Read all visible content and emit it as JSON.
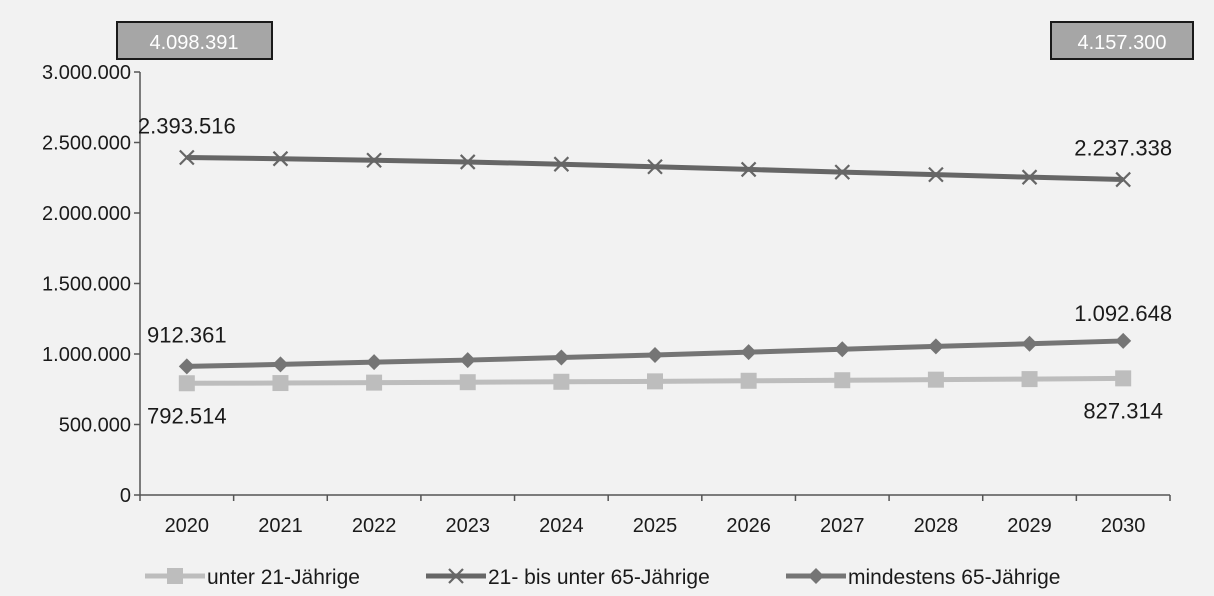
{
  "chart_data": {
    "type": "line",
    "title": "",
    "xlabel": "",
    "ylabel": "",
    "x": [
      2020,
      2021,
      2022,
      2023,
      2024,
      2025,
      2026,
      2027,
      2028,
      2029,
      2030
    ],
    "ylim": [
      0,
      3000000
    ],
    "yticks": [
      0,
      500000,
      1000000,
      1500000,
      2000000,
      2500000,
      3000000
    ],
    "ytick_labels": [
      "0",
      "500.000",
      "1.000.000",
      "1.500.000",
      "2.000.000",
      "2.500.000",
      "3.000.000"
    ],
    "grid": false,
    "legend_position": "bottom",
    "totals": {
      "start": "4.098.391",
      "end": "4.157.300"
    },
    "series": [
      {
        "name": "unter 21-Jährige",
        "marker": "square",
        "color": "#bdbdbd",
        "values": [
          792514,
          794000,
          797000,
          800000,
          803000,
          806000,
          810000,
          814000,
          818000,
          822000,
          827314
        ],
        "labels": {
          "first": "792.514",
          "last": "827.314"
        }
      },
      {
        "name": "21- bis unter 65-Jährige",
        "marker": "x",
        "color": "#666666",
        "values": [
          2393516,
          2385000,
          2374000,
          2362000,
          2346000,
          2328000,
          2309000,
          2290000,
          2272000,
          2254000,
          2237338
        ],
        "labels": {
          "first": "2.393.516",
          "last": "2.237.338"
        }
      },
      {
        "name": "mindestens 65-Jährige",
        "marker": "diamond",
        "color": "#757575",
        "values": [
          912361,
          926000,
          942000,
          957000,
          975000,
          993000,
          1013000,
          1034000,
          1054000,
          1073000,
          1092648
        ],
        "labels": {
          "first": "912.361",
          "last": "1.092.648"
        }
      }
    ]
  }
}
